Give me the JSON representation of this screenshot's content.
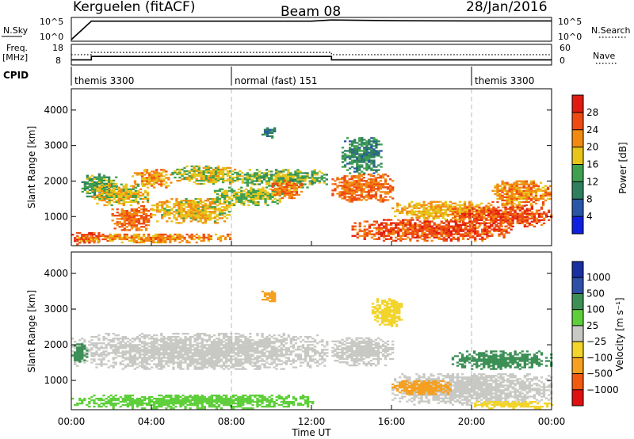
{
  "header": {
    "station": "Kerguelen (fitACF)",
    "beam": "Beam 08",
    "date": "28/Jan/2016"
  },
  "summary_panel": {
    "left_top_label": "N.Sky",
    "left_mid_label": "Freq.",
    "left_unit_label": "[MHz]",
    "cpid_label": "CPID",
    "right_top_label": "N.Search",
    "right_mid_label": "Nave",
    "nsky_ticks": [
      "10^5",
      "10^0"
    ],
    "nsearch_ticks": [
      "10^5",
      "10^0"
    ],
    "freq_ticks": [
      "18",
      "8"
    ],
    "nave_ticks": [
      "60",
      "0"
    ],
    "colors": {
      "line": "#000000"
    }
  },
  "chart_data": [
    {
      "type": "line",
      "name_hint": "summary-noise",
      "x": [
        "00:00",
        "01:00",
        "04:00",
        "08:00",
        "12:00",
        "13:00",
        "16:00",
        "20:00",
        "24:00"
      ],
      "series": [
        {
          "name": "N.Sky",
          "values": [
            1,
            30000,
            30000,
            30000,
            30000,
            60000,
            40000,
            35000,
            35000
          ]
        },
        {
          "name": "N.Search",
          "values": [
            1,
            30000,
            30000,
            30000,
            30000,
            60000,
            40000,
            35000,
            35000
          ]
        }
      ]
    },
    {
      "type": "line",
      "name_hint": "summary-freq-nave",
      "x": [
        "00:00",
        "01:00",
        "04:00",
        "08:00",
        "12:00",
        "13:00",
        "16:00",
        "20:00",
        "24:00"
      ],
      "series": [
        {
          "name": "Freq.",
          "values": [
            10,
            12,
            12,
            12,
            12,
            10,
            10,
            10,
            10
          ]
        },
        {
          "name": "Nave",
          "values": [
            30,
            38,
            38,
            38,
            38,
            30,
            30,
            30,
            30
          ]
        }
      ],
      "cpid_segments": [
        {
          "start": "00:00",
          "end": "08:00",
          "label": "themis 3300"
        },
        {
          "start": "08:00",
          "end": "20:00",
          "label": "normal (fast) 151"
        },
        {
          "start": "20:00",
          "end": "24:00",
          "label": "themis 3300"
        }
      ]
    },
    {
      "type": "heatmap",
      "name_hint": "power",
      "ylabel": "Slant Range [km]",
      "yticks": [
        "1000",
        "2000",
        "3000",
        "4000"
      ],
      "ylim": [
        180,
        4600
      ],
      "colorbar": {
        "label": "Power [dB]",
        "ticks": [
          "4",
          "8",
          "12",
          "16",
          "20",
          "24",
          "28"
        ],
        "range": [
          0,
          32
        ],
        "colors": [
          "#1020e0",
          "#2a56a8",
          "#2f7f5f",
          "#3fa050",
          "#e7c41a",
          "#f28a12",
          "#ee4a12",
          "#e01c10"
        ]
      },
      "regions": [
        {
          "t0": 0.0,
          "t1": 1.4,
          "r0": 200,
          "r1": 550,
          "v": 27
        },
        {
          "t0": 0.2,
          "t1": 8.0,
          "r0": 250,
          "r1": 500,
          "v": 22
        },
        {
          "t0": 0.5,
          "t1": 2.2,
          "r0": 1500,
          "r1": 2200,
          "v": 14
        },
        {
          "t0": 1.0,
          "t1": 3.8,
          "r0": 1300,
          "r1": 1900,
          "v": 18
        },
        {
          "t0": 2.0,
          "t1": 4.0,
          "r0": 600,
          "r1": 1300,
          "v": 24
        },
        {
          "t0": 3.0,
          "t1": 5.0,
          "r0": 1800,
          "r1": 2300,
          "v": 21
        },
        {
          "t0": 4.0,
          "t1": 8.0,
          "r0": 800,
          "r1": 1500,
          "v": 19
        },
        {
          "t0": 5.0,
          "t1": 8.5,
          "r0": 1900,
          "r1": 2400,
          "v": 17
        },
        {
          "t0": 7.0,
          "t1": 10.5,
          "r0": 1300,
          "r1": 1800,
          "v": 16
        },
        {
          "t0": 8.5,
          "t1": 12.8,
          "r0": 1800,
          "r1": 2300,
          "v": 15
        },
        {
          "t0": 10.0,
          "t1": 11.5,
          "r0": 1500,
          "r1": 2000,
          "v": 23
        },
        {
          "t0": 9.5,
          "t1": 10.2,
          "r0": 3200,
          "r1": 3500,
          "v": 10
        },
        {
          "t0": 13.0,
          "t1": 16.0,
          "r0": 1400,
          "r1": 2200,
          "v": 24
        },
        {
          "t0": 13.5,
          "t1": 15.5,
          "r0": 2200,
          "r1": 3200,
          "v": 11
        },
        {
          "t0": 14.0,
          "t1": 22.0,
          "r0": 300,
          "r1": 900,
          "v": 26
        },
        {
          "t0": 16.0,
          "t1": 21.0,
          "r0": 900,
          "r1": 1400,
          "v": 20
        },
        {
          "t0": 19.0,
          "t1": 24.0,
          "r0": 700,
          "r1": 1300,
          "v": 26
        },
        {
          "t0": 21.0,
          "t1": 24.0,
          "r0": 1300,
          "r1": 2000,
          "v": 22
        }
      ]
    },
    {
      "type": "heatmap",
      "name_hint": "velocity",
      "ylabel": "Slant Range [km]",
      "yticks": [
        "1000",
        "2000",
        "3000",
        "4000"
      ],
      "ylim": [
        180,
        4600
      ],
      "xlabel": "Time UT",
      "xticks": [
        "00:00",
        "04:00",
        "08:00",
        "12:00",
        "16:00",
        "20:00",
        "00:00"
      ],
      "colorbar": {
        "label": "Velocity [m s⁻¹]",
        "ticks": [
          "-1000",
          "-500",
          "-100",
          "-25",
          "25",
          "100",
          "500",
          "1000"
        ],
        "ticks_display": [
          "−1000",
          "−500",
          "−100",
          "−25",
          "25",
          "100",
          "500",
          "1000"
        ],
        "colors": [
          "#e01010",
          "#f25a10",
          "#f5a020",
          "#f2d42a",
          "#c8c8c4",
          "#5ecf3a",
          "#3c8f55",
          "#2c4fa8",
          "#1a2fa0"
        ]
      },
      "regions": [
        {
          "t0": 0.0,
          "t1": 12.8,
          "r0": 1300,
          "r1": 2300,
          "v": 0
        },
        {
          "t0": 0.0,
          "t1": 12.0,
          "r0": 200,
          "r1": 600,
          "v": 60
        },
        {
          "t0": 0.0,
          "t1": 0.8,
          "r0": 1500,
          "r1": 2000,
          "v": 150
        },
        {
          "t0": 9.5,
          "t1": 10.2,
          "r0": 3200,
          "r1": 3500,
          "v": -300
        },
        {
          "t0": 13.0,
          "t1": 16.0,
          "r0": 1400,
          "r1": 2200,
          "v": 0
        },
        {
          "t0": 15.0,
          "t1": 16.5,
          "r0": 2500,
          "r1": 3300,
          "v": -60
        },
        {
          "t0": 16.0,
          "t1": 24.0,
          "r0": 300,
          "r1": 1200,
          "v": 0
        },
        {
          "t0": 19.0,
          "t1": 24.0,
          "r0": 1300,
          "r1": 1800,
          "v": 150
        },
        {
          "t0": 20.0,
          "t1": 24.0,
          "r0": 200,
          "r1": 400,
          "v": -40
        },
        {
          "t0": 16.0,
          "t1": 19.0,
          "r0": 600,
          "r1": 1000,
          "v": -300
        }
      ]
    }
  ]
}
